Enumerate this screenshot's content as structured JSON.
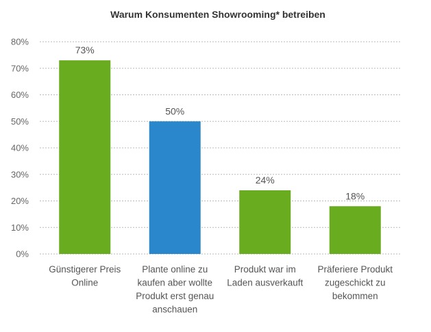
{
  "chart_data": {
    "type": "bar",
    "title": "Warum Konsumenten Showrooming* betreiben",
    "categories": [
      [
        "Günstigerer Preis",
        "Online"
      ],
      [
        "Plante online zu",
        "kaufen aber wollte",
        "Produkt erst genau",
        "anschauen"
      ],
      [
        "Produkt war im",
        "Laden ausverkauft"
      ],
      [
        "Präferiere Produkt",
        "zugeschickt zu",
        "bekommen"
      ]
    ],
    "values": [
      73,
      50,
      24,
      18
    ],
    "data_labels": [
      "73%",
      "50%",
      "24%",
      "18%"
    ],
    "colors": [
      "#6aac1f",
      "#2b87cc",
      "#6aac1f",
      "#6aac1f"
    ],
    "ylim": [
      0,
      80
    ],
    "yticks": [
      0,
      10,
      20,
      30,
      40,
      50,
      60,
      70,
      80
    ],
    "ytick_labels": [
      "0%",
      "10%",
      "20%",
      "30%",
      "40%",
      "50%",
      "60%",
      "70%",
      "80%"
    ],
    "grid": true,
    "xlabel": "",
    "ylabel": ""
  }
}
